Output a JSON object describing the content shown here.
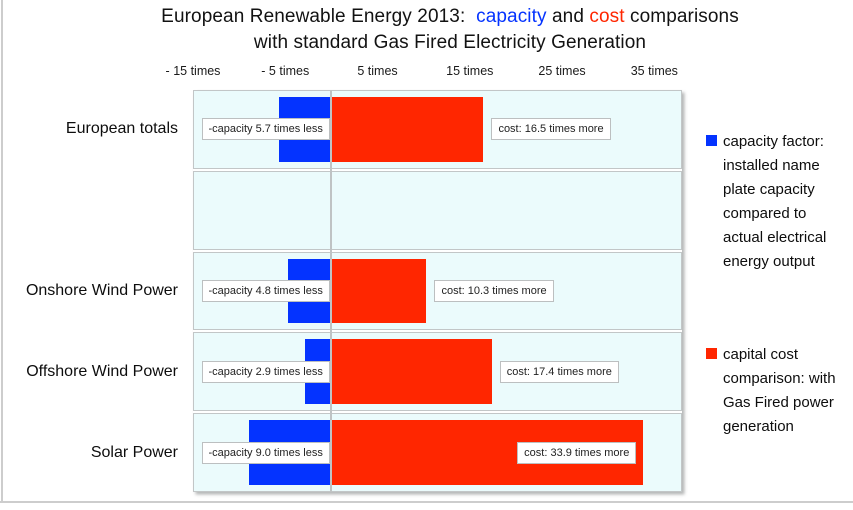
{
  "title": {
    "part1": "European Renewable Energy 2013:  ",
    "capacity_word": "capacity",
    "part2": " and ",
    "cost_word": "cost",
    "part3": " comparisons",
    "line2": "with standard Gas Fired Electricity Generation"
  },
  "colors": {
    "capacity_blue": "#0433ff",
    "cost_red": "#ff2600",
    "row_background": "#ebfbfc",
    "plot_border": "#c2c6c7",
    "zero_line": "#bfc3c4",
    "frame_line": "#cdcdcd",
    "label_box_background": "#ffffff"
  },
  "chart_data": {
    "type": "bar",
    "orientation": "horizontal",
    "title": "European Renewable Energy 2013: capacity and cost comparisons with standard Gas Fired Electricity Generation",
    "categories": [
      "European totals",
      "",
      "Onshore Wind Power",
      "Offshore Wind Power",
      "Solar Power"
    ],
    "series": [
      {
        "name": "capacity factor",
        "color": "#0433ff",
        "values": [
          -5.7,
          null,
          -4.8,
          -2.9,
          -9.0
        ],
        "bar_labels": [
          "-capacity 5.7 times less",
          "",
          "-capacity 4.8 times less",
          "-capacity 2.9 times less",
          "-capacity 9.0 times less"
        ]
      },
      {
        "name": "capital cost",
        "color": "#ff2600",
        "values": [
          16.5,
          null,
          10.3,
          17.4,
          33.9
        ],
        "bar_labels": [
          "cost: 16.5 times more",
          "",
          "cost: 10.3 times more",
          "cost: 17.4 times more",
          "cost: 33.9 times more"
        ]
      }
    ],
    "xlim": [
      -15,
      38
    ],
    "x_ticks": [
      {
        "value": -15,
        "label": "- 15 times"
      },
      {
        "value": -5,
        "label": "- 5 times"
      },
      {
        "value": 5,
        "label": "5 times"
      },
      {
        "value": 15,
        "label": "15 times"
      },
      {
        "value": 25,
        "label": "25 times"
      },
      {
        "value": 35,
        "label": "35 times"
      }
    ],
    "grid": "zero-line-only",
    "legend_position": "right"
  },
  "legend": [
    {
      "color": "#0433ff",
      "text": "capacity factor: installed name plate capacity compared to actual electrical energy output"
    },
    {
      "color": "#ff2600",
      "text": "capital cost comparison: with Gas Fired power generation"
    }
  ]
}
